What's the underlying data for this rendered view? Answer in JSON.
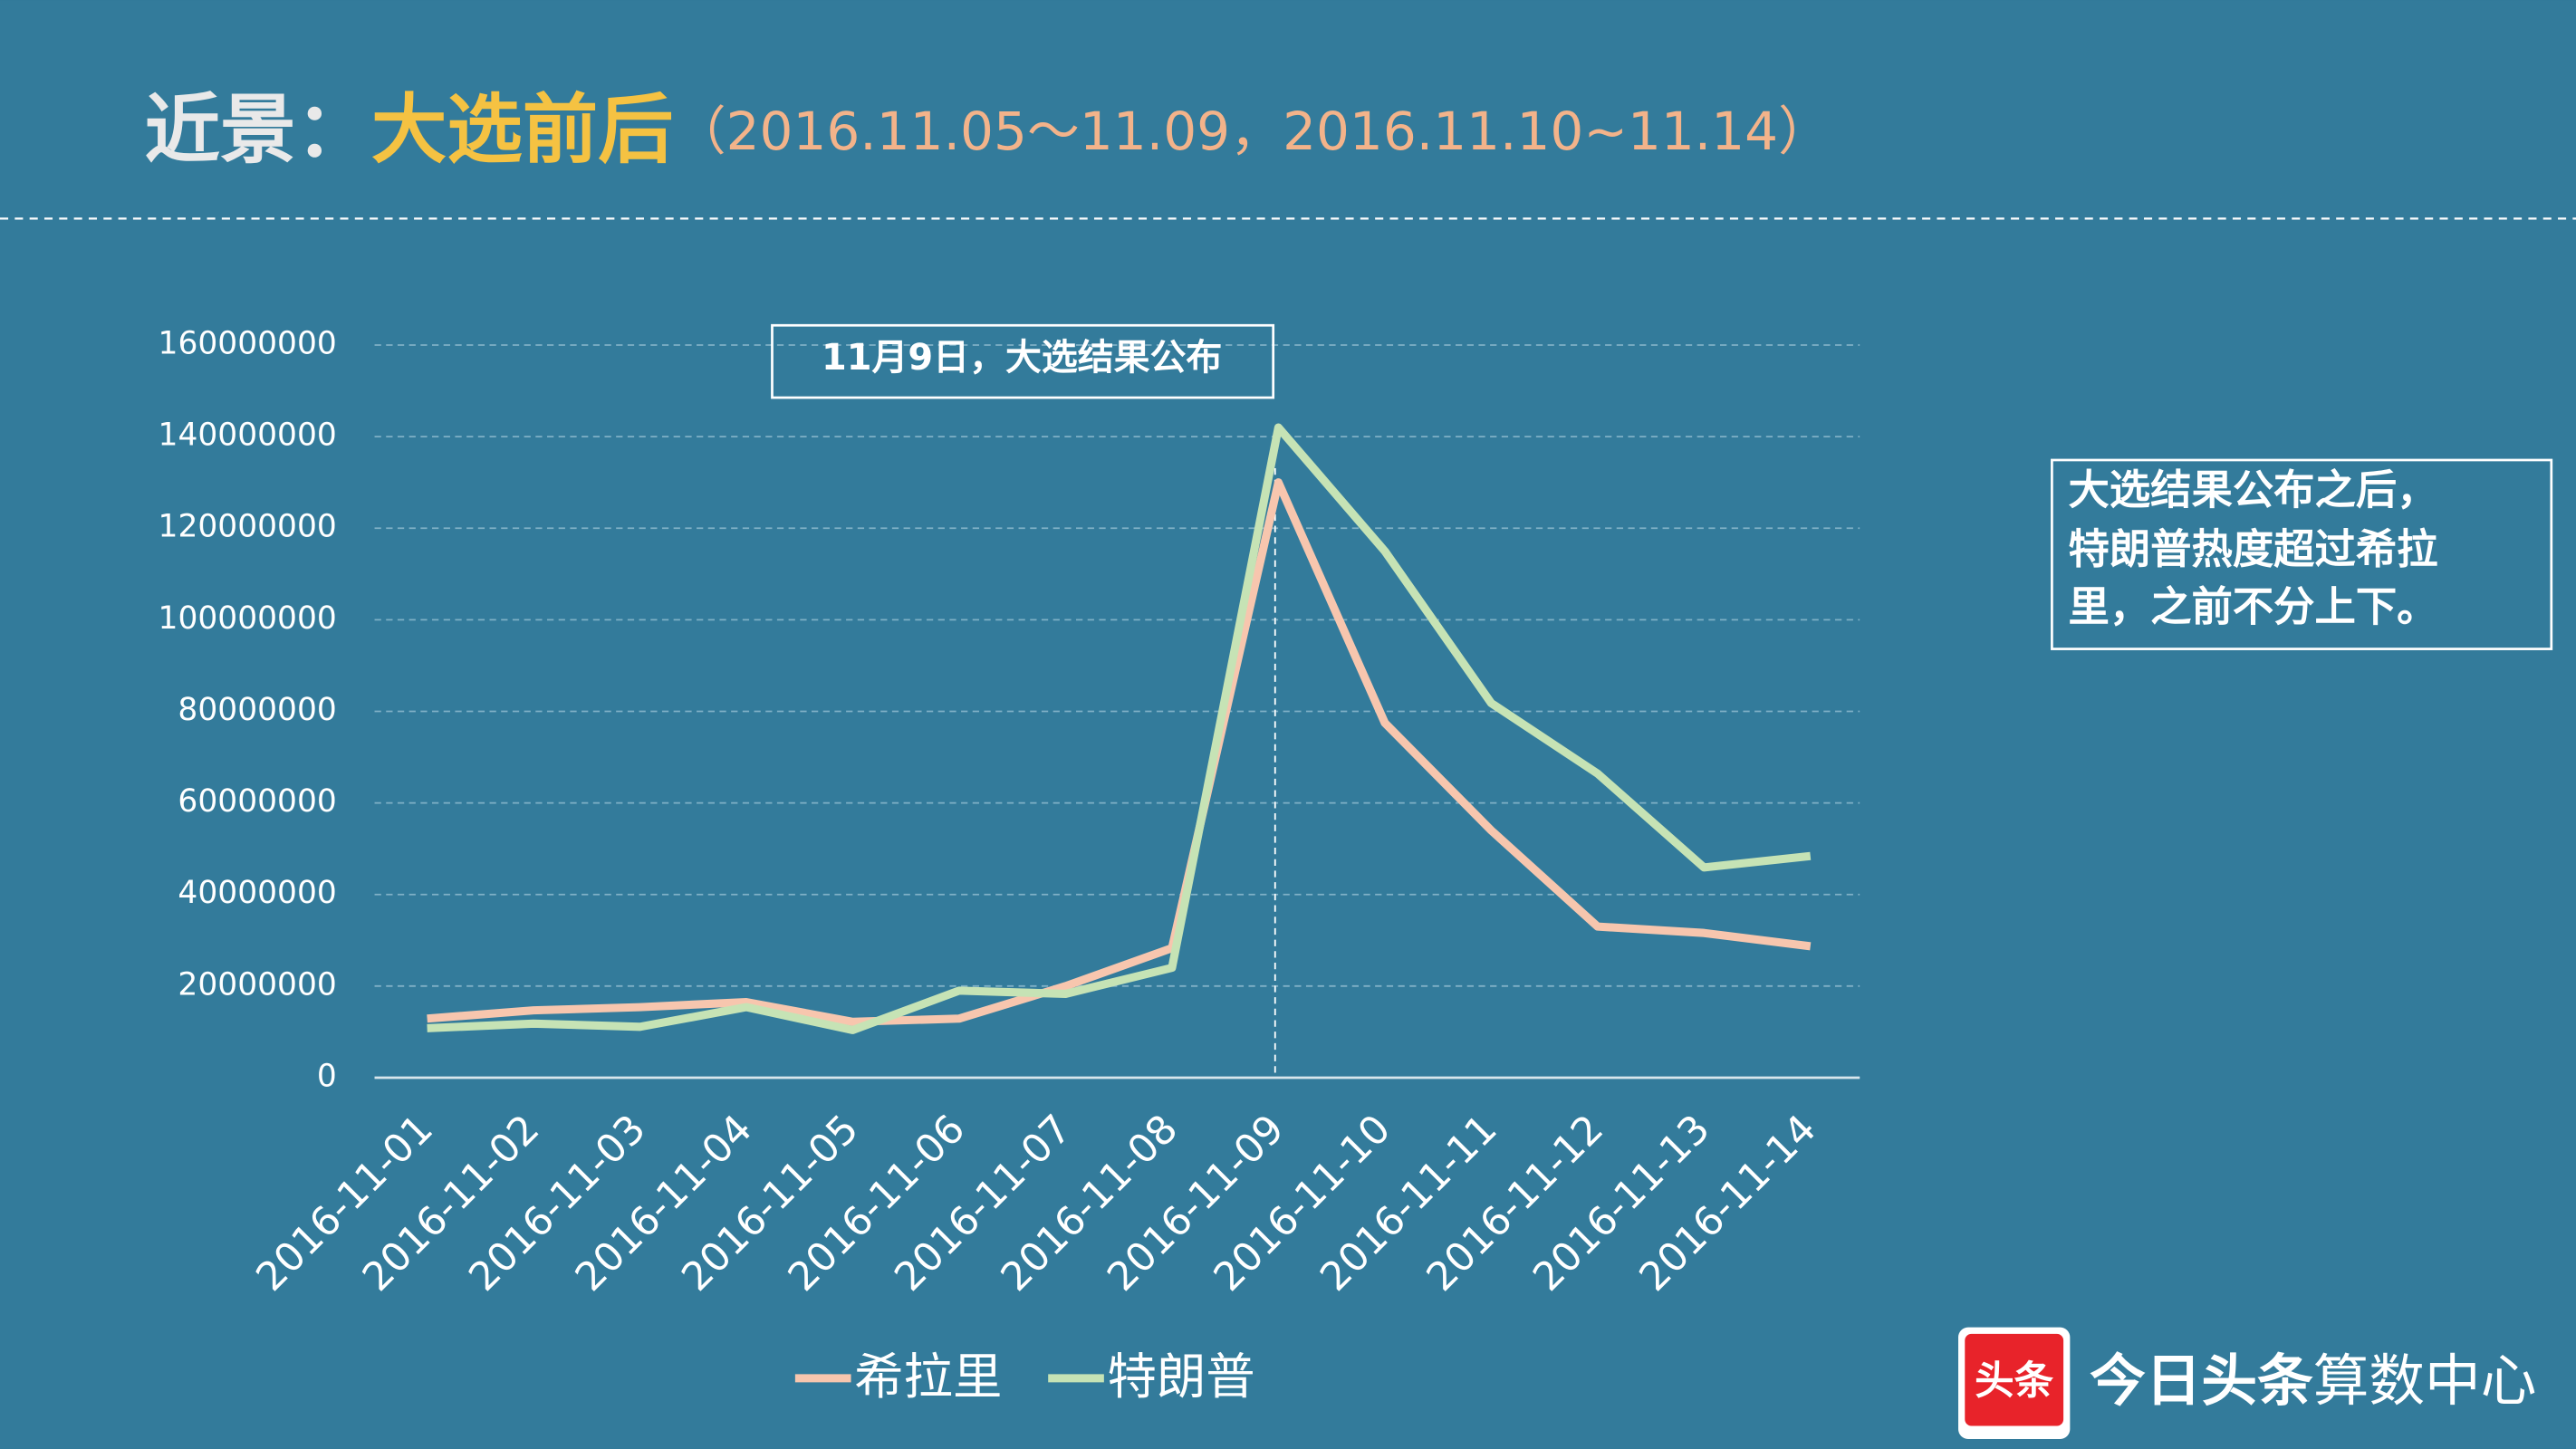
{
  "header": {
    "title_lead": "近景：",
    "title_main": "大选前后",
    "title_dates": "（2016.11.05～11.09，2016.11.10~11.14）"
  },
  "chart_data": {
    "type": "line",
    "categories": [
      "2016-11-01",
      "2016-11-02",
      "2016-11-03",
      "2016-11-04",
      "2016-11-05",
      "2016-11-06",
      "2016-11-07",
      "2016-11-08",
      "2016-11-09",
      "2016-11-10",
      "2016-11-11",
      "2016-11-12",
      "2016-11-13",
      "2016-11-14"
    ],
    "series": [
      {
        "name": "希拉里",
        "color": "#f7c6ae",
        "values": [
          12900000,
          14700000,
          15400000,
          16500000,
          12200000,
          12900000,
          20000000,
          28300000,
          130000000,
          77500000,
          54000000,
          33000000,
          31600000,
          28700000
        ]
      },
      {
        "name": "特朗普",
        "color": "#c6e3b5",
        "values": [
          10800000,
          11800000,
          11100000,
          15400000,
          10400000,
          19000000,
          18300000,
          24000000,
          142000000,
          115000000,
          81800000,
          66400000,
          45900000,
          48400000
        ]
      }
    ],
    "ylim": [
      0,
      160000000
    ],
    "yticks": [
      0,
      20000000,
      40000000,
      60000000,
      80000000,
      100000000,
      120000000,
      140000000,
      160000000
    ],
    "grid": true,
    "legend": "bottom",
    "annotation": "11月9日，大选结果公布",
    "note": [
      "大选结果公布之后，",
      "特朗普热度超过希拉",
      "里，之前不分上下。"
    ]
  },
  "footer": {
    "logo_icon": "头条",
    "logo_brand": "今日头条",
    "logo_suffix": "算数中心"
  }
}
